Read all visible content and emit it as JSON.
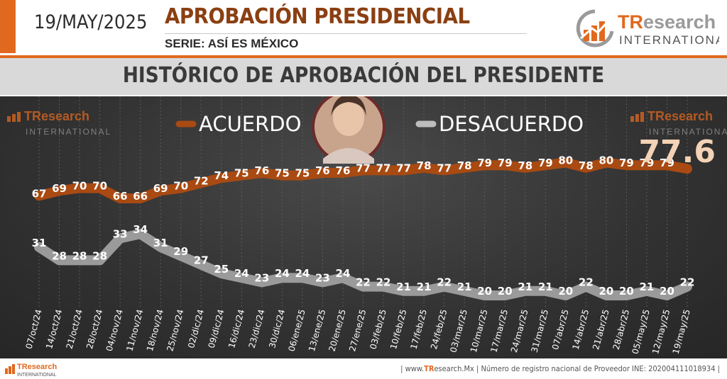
{
  "header": {
    "date": "19/MAY/2025",
    "title": "APROBACIÓN PRESIDENCIAL",
    "subtitle": "SERIE: ASÍ ES MÉXICO",
    "logo_main": "TResearch",
    "logo_sub": "INTERNATIONAL",
    "logo_icon": "bar-chart-arrow-icon"
  },
  "banner": {
    "title": "HISTÓRICO DE APROBACIÓN DEL PRESIDENTE"
  },
  "colors": {
    "accent": "#e0691f",
    "approve_line": "#a84a12",
    "disapprove_line": "#9a9a9a",
    "chart_bg": "#333333"
  },
  "chart_data": {
    "type": "line",
    "categories": [
      "07/oct/24",
      "14/oct/24",
      "21/oct/24",
      "28/oct/24",
      "04/nov/24",
      "11/nov/24",
      "18/nov/24",
      "25/nov/24",
      "02/dic/24",
      "09/dic/24",
      "16/dic/24",
      "23/dic/24",
      "30/dic/24",
      "06/ene/25",
      "13/ene/25",
      "20/ene/25",
      "27/ene/25",
      "03/feb/25",
      "10/feb/25",
      "17/feb/25",
      "24/feb/25",
      "03/mar/25",
      "10/mar/25",
      "17/mar/25",
      "24/mar/25",
      "31/mar/25",
      "07/abr/25",
      "14/abr/25",
      "21/abr/25",
      "28/abr/25",
      "05/may/25",
      "12/may/25",
      "19/may/25"
    ],
    "series": [
      {
        "name": "ACUERDO",
        "color": "#a84a12",
        "values": [
          67,
          69,
          70,
          70,
          66,
          66,
          69,
          70,
          72,
          74,
          75,
          76,
          75,
          75,
          76,
          76,
          77,
          77,
          77,
          78,
          77,
          78,
          79,
          79,
          78,
          79,
          80,
          78,
          80,
          79,
          79,
          79,
          77.6
        ]
      },
      {
        "name": "DESACUERDO",
        "color": "#9a9a9a",
        "values": [
          31,
          28,
          28,
          28,
          33,
          34,
          31,
          29,
          27,
          25,
          24,
          23,
          24,
          24,
          23,
          24,
          22,
          22,
          21,
          21,
          22,
          21,
          20,
          20,
          21,
          21,
          20,
          22,
          20,
          20,
          21,
          20,
          22
        ]
      }
    ],
    "highlight_value": "77.6",
    "ylim": [
      0,
      100
    ],
    "grid": true,
    "legend_position": "top-center"
  },
  "watermarks": {
    "brand": "TResearch",
    "sub": "INTERNATIONAL"
  },
  "footer": {
    "prefix": "| www.",
    "site_brand": "TR",
    "site_rest": "esearch.Mx | Número de registro nacional de Proveedor INE: 202004111018934 |"
  }
}
